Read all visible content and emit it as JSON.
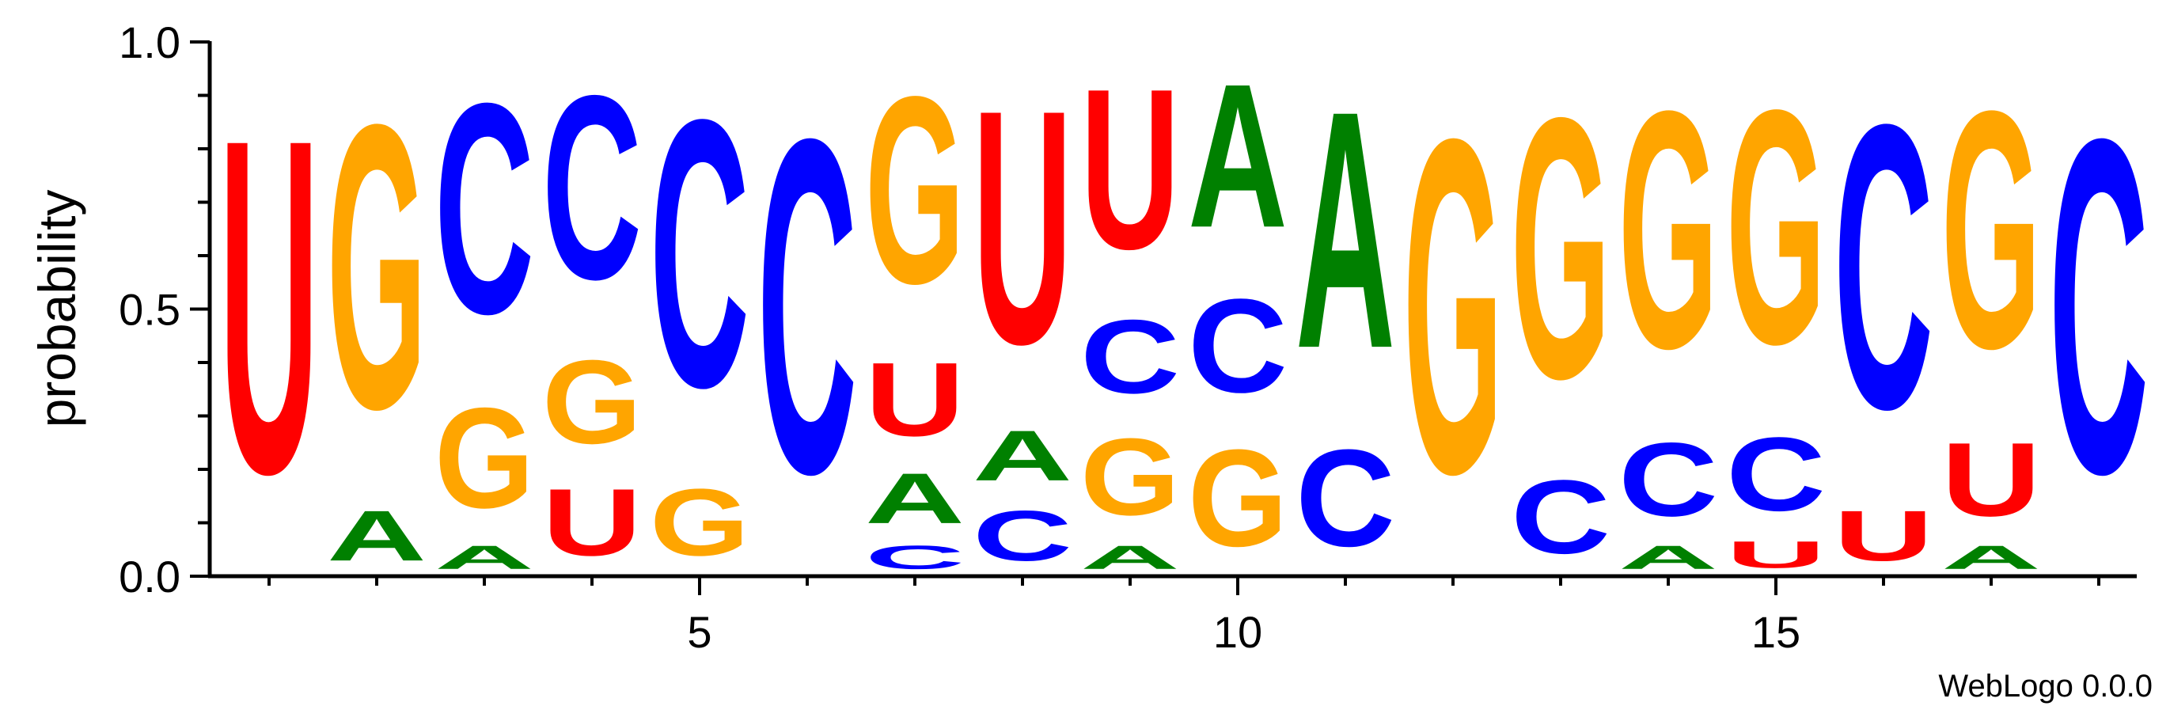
{
  "chart_data": {
    "type": "sequence-logo",
    "ylabel": "probability",
    "ylim": [
      0,
      1
    ],
    "yticks": [
      "0.0",
      "0.5",
      "1.0"
    ],
    "xticks": [
      5,
      10,
      15
    ],
    "credit": "WebLogo 0.0.0",
    "colors": {
      "U": "#ff0000",
      "G": "#ffa500",
      "C": "#0000ff",
      "A": "#008000"
    },
    "positions": [
      {
        "pos": 1,
        "stack": [
          {
            "letter": "U",
            "p": 1.0
          }
        ]
      },
      {
        "pos": 2,
        "stack": [
          {
            "letter": "A",
            "p": 0.15
          },
          {
            "letter": "G",
            "p": 0.85
          }
        ]
      },
      {
        "pos": 3,
        "stack": [
          {
            "letter": "A",
            "p": 0.07
          },
          {
            "letter": "G",
            "p": 0.3
          },
          {
            "letter": "C",
            "p": 0.63
          }
        ]
      },
      {
        "pos": 4,
        "stack": [
          {
            "letter": "U",
            "p": 0.2
          },
          {
            "letter": "G",
            "p": 0.25
          },
          {
            "letter": "C",
            "p": 0.55
          }
        ]
      },
      {
        "pos": 5,
        "stack": [
          {
            "letter": "G",
            "p": 0.2
          },
          {
            "letter": "C",
            "p": 0.8
          }
        ]
      },
      {
        "pos": 6,
        "stack": [
          {
            "letter": "C",
            "p": 1.0
          }
        ]
      },
      {
        "pos": 7,
        "stack": [
          {
            "letter": "C",
            "p": 0.07
          },
          {
            "letter": "A",
            "p": 0.15
          },
          {
            "letter": "U",
            "p": 0.22
          },
          {
            "letter": "G",
            "p": 0.56
          }
        ]
      },
      {
        "pos": 8,
        "stack": [
          {
            "letter": "C",
            "p": 0.15
          },
          {
            "letter": "A",
            "p": 0.15
          },
          {
            "letter": "U",
            "p": 0.7
          }
        ]
      },
      {
        "pos": 9,
        "stack": [
          {
            "letter": "A",
            "p": 0.07
          },
          {
            "letter": "G",
            "p": 0.23
          },
          {
            "letter": "C",
            "p": 0.22
          },
          {
            "letter": "U",
            "p": 0.48
          }
        ]
      },
      {
        "pos": 10,
        "stack": [
          {
            "letter": "G",
            "p": 0.29
          },
          {
            "letter": "C",
            "p": 0.28
          },
          {
            "letter": "A",
            "p": 0.43
          }
        ]
      },
      {
        "pos": 11,
        "stack": [
          {
            "letter": "C",
            "p": 0.29
          },
          {
            "letter": "A",
            "p": 0.71
          }
        ]
      },
      {
        "pos": 12,
        "stack": [
          {
            "letter": "G",
            "p": 1.0
          }
        ]
      },
      {
        "pos": 13,
        "stack": [
          {
            "letter": "C",
            "p": 0.22
          },
          {
            "letter": "G",
            "p": 0.78
          }
        ]
      },
      {
        "pos": 14,
        "stack": [
          {
            "letter": "A",
            "p": 0.07
          },
          {
            "letter": "C",
            "p": 0.22
          },
          {
            "letter": "G",
            "p": 0.71
          }
        ]
      },
      {
        "pos": 15,
        "stack": [
          {
            "letter": "U",
            "p": 0.08
          },
          {
            "letter": "C",
            "p": 0.22
          },
          {
            "letter": "G",
            "p": 0.7
          }
        ]
      },
      {
        "pos": 16,
        "stack": [
          {
            "letter": "U",
            "p": 0.15
          },
          {
            "letter": "C",
            "p": 0.85
          }
        ]
      },
      {
        "pos": 17,
        "stack": [
          {
            "letter": "A",
            "p": 0.07
          },
          {
            "letter": "U",
            "p": 0.22
          },
          {
            "letter": "G",
            "p": 0.71
          }
        ]
      },
      {
        "pos": 18,
        "stack": [
          {
            "letter": "C",
            "p": 1.0
          }
        ]
      }
    ]
  }
}
